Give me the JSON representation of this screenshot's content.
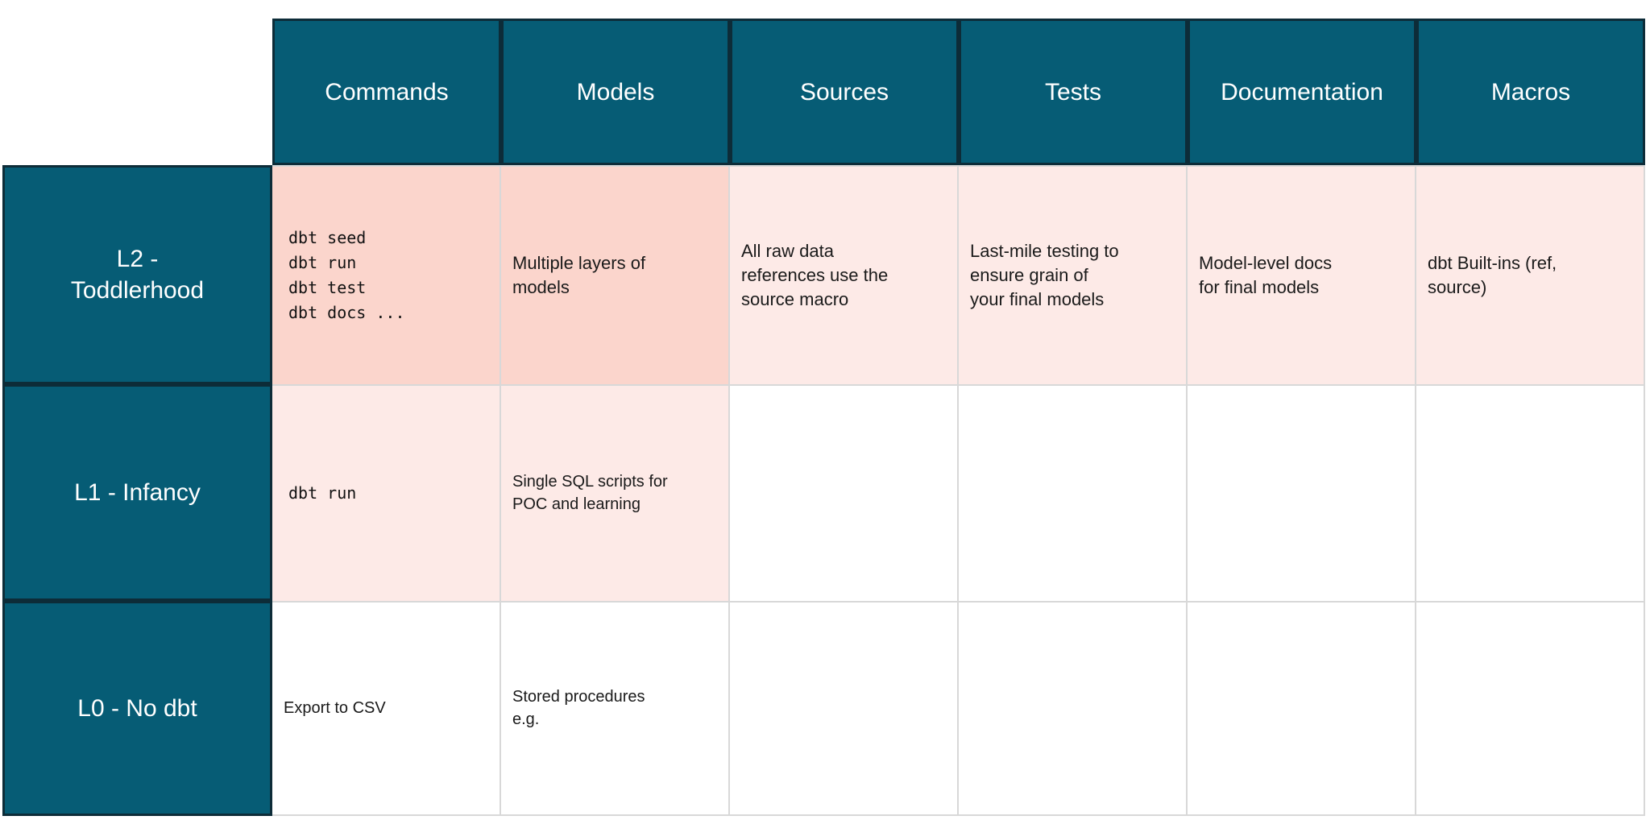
{
  "colors": {
    "header_teal": "#065c75",
    "header_border": "#0d2c38",
    "salmon_cell": "#fbd5cc",
    "light_pink_cell": "#fdeae7",
    "grid_line": "#d8d8d8",
    "header_text": "#ffffff",
    "body_text": "#1a1a1a"
  },
  "table": {
    "column_headers": [
      "Commands",
      "Models",
      "Sources",
      "Tests",
      "Documentation",
      "Macros"
    ],
    "rows": [
      {
        "label": "L2 -\nToddlerhood",
        "cells": {
          "commands": "dbt seed\ndbt run\ndbt test\ndbt docs ...",
          "models": "Multiple layers of\nmodels",
          "sources": "All raw data\nreferences use the\nsource macro",
          "tests": "Last-mile testing to\nensure grain of\nyour final models",
          "documentation": "Model-level docs\nfor final models",
          "macros": "dbt Built-ins (ref,\nsource)"
        }
      },
      {
        "label": "L1 - Infancy",
        "cells": {
          "commands": "dbt run",
          "models": "Single SQL scripts for\nPOC and learning",
          "sources": "",
          "tests": "",
          "documentation": "",
          "macros": ""
        }
      },
      {
        "label": "L0 - No dbt",
        "cells": {
          "commands": "Export to CSV",
          "models": "Stored procedures\ne.g.",
          "sources": "",
          "tests": "",
          "documentation": "",
          "macros": ""
        }
      }
    ]
  }
}
